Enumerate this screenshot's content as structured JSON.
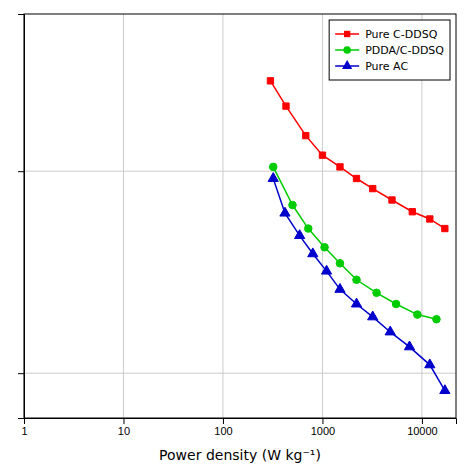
{
  "chart_data": {
    "type": "line",
    "log": true,
    "grid": true,
    "legend": "top-right",
    "tick_labels": "x",
    "xlabel": "Power density (W kg⁻¹)",
    "xlim": [
      1,
      22000
    ],
    "ylim": [
      0.6,
      60
    ],
    "xticks": [
      1,
      10,
      100,
      1000,
      10000
    ],
    "yticks": [
      1,
      10
    ],
    "series": [
      {
        "name": "Pure C-DDSQ",
        "color": "#ff0000",
        "marker": "square",
        "x": [
          300,
          430,
          680,
          1000,
          1500,
          2200,
          3200,
          5000,
          8000,
          12000,
          17000
        ],
        "values": [
          28,
          21,
          15,
          12,
          10.5,
          9.2,
          8.2,
          7.2,
          6.3,
          5.8,
          5.2
        ]
      },
      {
        "name": "PDDA/C-DDSQ",
        "color": "#00cc00",
        "marker": "circle",
        "x": [
          320,
          500,
          720,
          1050,
          1500,
          2200,
          3500,
          5500,
          9000,
          14000
        ],
        "values": [
          10.5,
          6.8,
          5.2,
          4.2,
          3.5,
          2.9,
          2.5,
          2.2,
          1.95,
          1.85
        ]
      },
      {
        "name": "Pure AC",
        "color": "#0000cc",
        "marker": "triangle",
        "x": [
          320,
          420,
          590,
          800,
          1100,
          1500,
          2200,
          3200,
          4800,
          7500,
          12000,
          17000
        ],
        "values": [
          9.2,
          6.2,
          4.8,
          3.9,
          3.2,
          2.6,
          2.2,
          1.9,
          1.6,
          1.35,
          1.1,
          0.82
        ]
      }
    ]
  }
}
